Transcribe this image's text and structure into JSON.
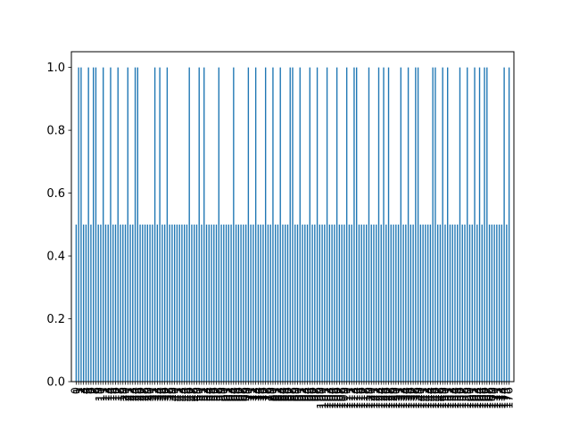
{
  "chart_data": {
    "type": "bar",
    "title": "",
    "xlabel": "",
    "ylabel": "",
    "ylim": [
      0,
      1.05
    ],
    "yticks": [
      "0.0",
      "0.2",
      "0.4",
      "0.6",
      "0.8",
      "1.0"
    ],
    "grid": false,
    "legend": "none",
    "bar_color": "#1f77b4",
    "series": [
      {
        "values": [
          0.5,
          1,
          1,
          0.5,
          0.5,
          1,
          0.5,
          1,
          1,
          0.5,
          0.5,
          1,
          0.5,
          0.5,
          1,
          0.5,
          0.5,
          1,
          0.5,
          0.5,
          0.5,
          1,
          0.5,
          0.5,
          1,
          1,
          0.5,
          0.5,
          0.5,
          0.5,
          0.5,
          0.5,
          1,
          0.5,
          1,
          0.5,
          0.5,
          1,
          0.5,
          0.5,
          0.5,
          0.5,
          0.5,
          0.5,
          0.5,
          0.5,
          1,
          0.5,
          0.5,
          0.5,
          1,
          0.5,
          1,
          0.5,
          0.5,
          0.5,
          0.5,
          0.5,
          1,
          0.5,
          0.5,
          0.5,
          0.5,
          0.5,
          1,
          0.5,
          0.5,
          0.5,
          0.5,
          0.5,
          1,
          0.5,
          0.5,
          1,
          0.5,
          0.5,
          0.5,
          1,
          0.5,
          0.5,
          1,
          0.5,
          0.5,
          1,
          0.5,
          0.5,
          0.5,
          1,
          1,
          0.5,
          0.5,
          1,
          0.5,
          0.5,
          0.5,
          1,
          0.5,
          0.5,
          1,
          0.5,
          0.5,
          0.5,
          1,
          0.5,
          0.5,
          0.5,
          1,
          0.5,
          0.5,
          0.5,
          1,
          0.5,
          0.5,
          1,
          1,
          0.5,
          0.5,
          0.5,
          0.5,
          1,
          0.5,
          0.5,
          0.5,
          1,
          0.5,
          1,
          0.5,
          1,
          0.5,
          0.5,
          0.5,
          0.5,
          1,
          0.5,
          0.5,
          1,
          0.5,
          0.5,
          1,
          1,
          0.5,
          0.5,
          0.5,
          0.5,
          0.5,
          1,
          1,
          0.5,
          0.5,
          1,
          0.5,
          1,
          0.5,
          0.5,
          0.5,
          0.5,
          1,
          0.5,
          0.5,
          1,
          0.5,
          0.5,
          1,
          0.5,
          1,
          0.5,
          1,
          1,
          0.5,
          0.5,
          0.5,
          0.5,
          0.5,
          0.5,
          1,
          0.5,
          1
        ]
      }
    ]
  }
}
